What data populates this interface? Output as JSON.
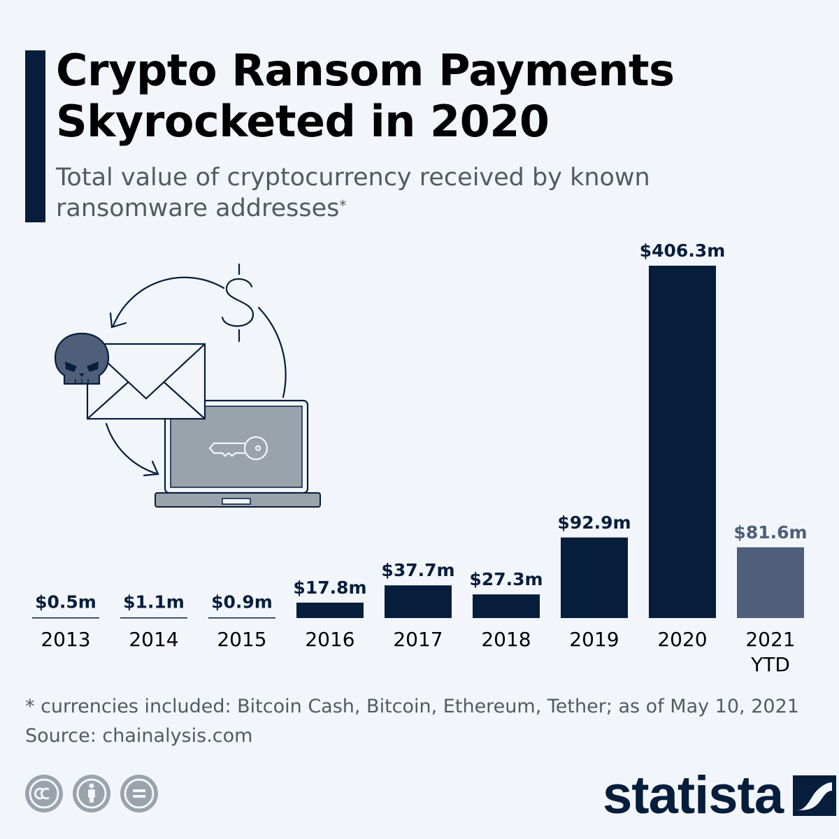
{
  "header": {
    "title": "Crypto Ransom Payments Skyrocketed in 2020",
    "subtitle": "Total value of cryptocurrency received by known ransomware addresses",
    "subtitle_mark": "*"
  },
  "chart_data": {
    "type": "bar",
    "title": "Crypto Ransom Payments Skyrocketed in 2020",
    "subtitle": "Total value of cryptocurrency received by known ransomware addresses*",
    "unit": "$m",
    "categories": [
      "2013",
      "2014",
      "2015",
      "2016",
      "2017",
      "2018",
      "2019",
      "2020",
      "2021 YTD"
    ],
    "values": [
      0.5,
      1.1,
      0.9,
      17.8,
      37.7,
      27.3,
      92.9,
      406.3,
      81.6
    ],
    "labels": [
      "$0.5m",
      "$1.1m",
      "$0.9m",
      "$17.8m",
      "$37.7m",
      "$27.3m",
      "$92.9m",
      "$406.3m",
      "$81.6m"
    ],
    "bar_colors": [
      "#071d3c",
      "#071d3c",
      "#071d3c",
      "#071d3c",
      "#071d3c",
      "#071d3c",
      "#071d3c",
      "#071d3c",
      "#4f5f79"
    ],
    "ylim": [
      0,
      406.3
    ],
    "grid": false,
    "legend": "none"
  },
  "footer": {
    "note": "* currencies included: Bitcoin Cash, Bitcoin, Ethereum, Tether; as of May 10, 2021",
    "source": "Source: chainalysis.com",
    "brand": "statista",
    "license_icons": [
      "creative-commons-icon",
      "attribution-icon",
      "no-derivatives-icon"
    ]
  },
  "colors": {
    "accent": "#071d3c",
    "bar": "#071d3c",
    "bar_ytd": "#4f5f79",
    "background": "#f2f6fa",
    "subtitle_text": "#555a5f"
  }
}
